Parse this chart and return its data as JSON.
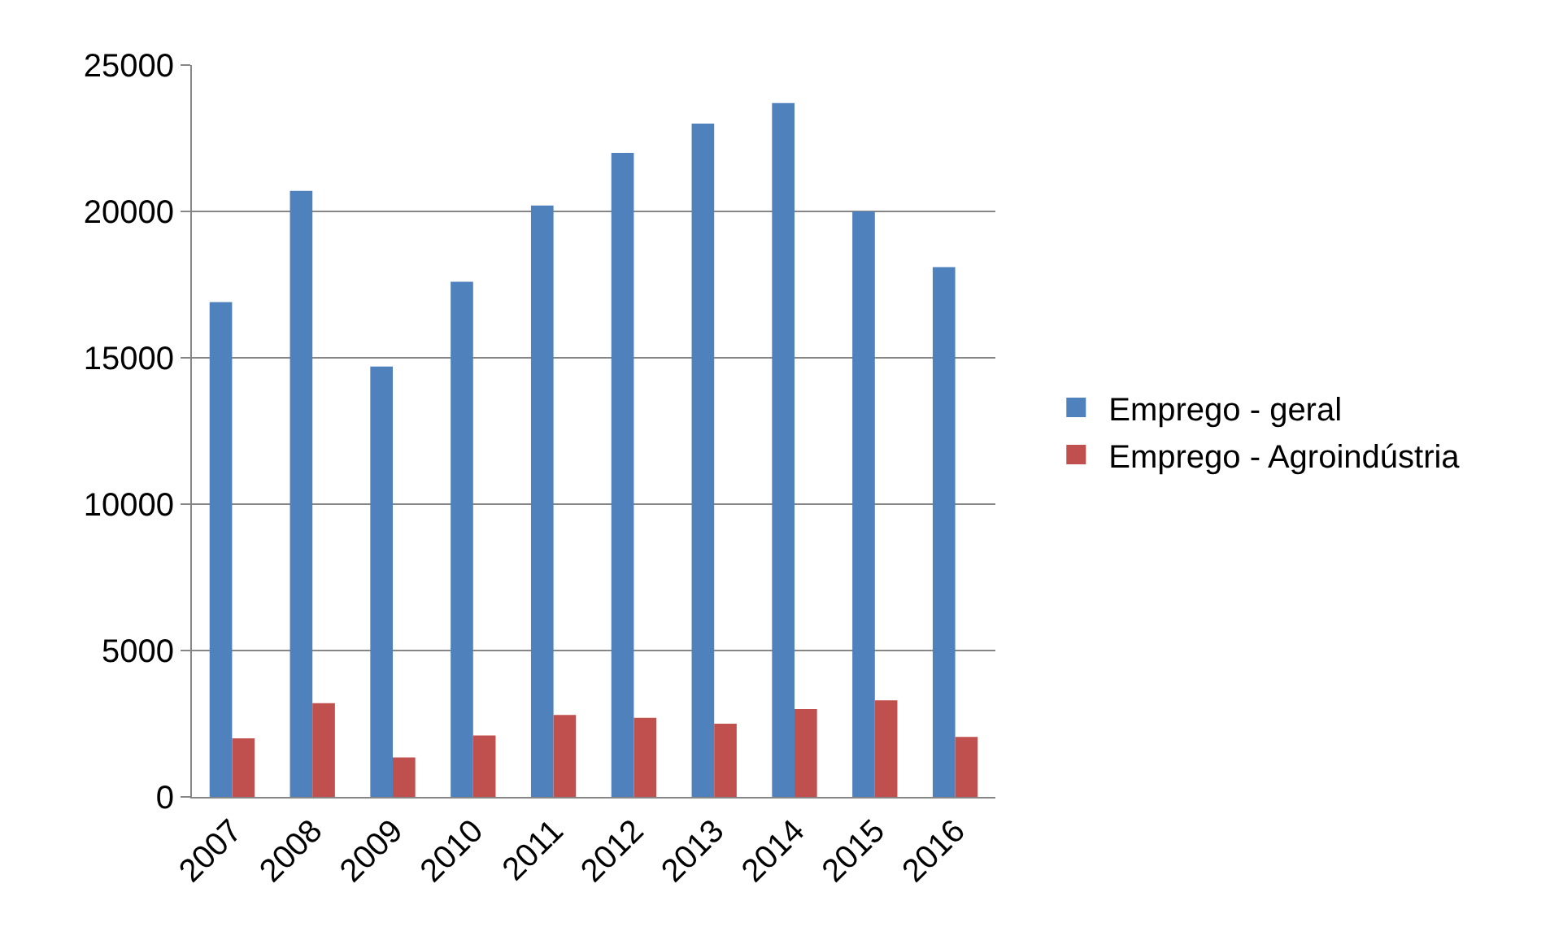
{
  "chart_data": {
    "type": "bar",
    "categories": [
      "2007",
      "2008",
      "2009",
      "2010",
      "2011",
      "2012",
      "2013",
      "2014",
      "2015",
      "2016"
    ],
    "series": [
      {
        "name": "Emprego - geral",
        "color": "#4f81bd",
        "values": [
          16900,
          20700,
          14700,
          17600,
          20200,
          22000,
          23000,
          23700,
          20000,
          18100
        ]
      },
      {
        "name": "Emprego - Agroindústria",
        "color": "#c0504d",
        "values": [
          2000,
          3200,
          1350,
          2100,
          2800,
          2700,
          2500,
          3000,
          3300,
          2050
        ]
      }
    ],
    "ylim": [
      0,
      25000
    ],
    "yticks": [
      0,
      5000,
      10000,
      15000,
      20000,
      25000
    ],
    "grid": "y",
    "legend": "right"
  }
}
